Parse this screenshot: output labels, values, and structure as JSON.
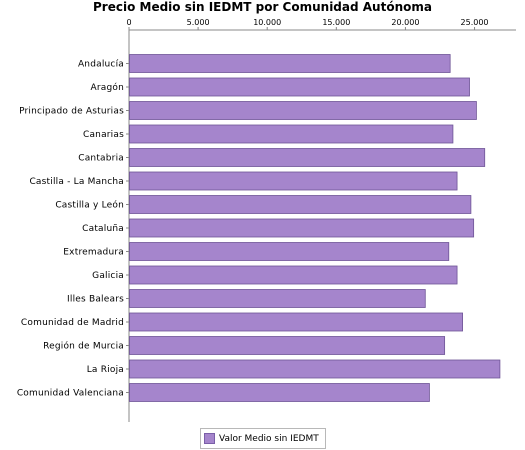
{
  "chart_data": {
    "type": "bar",
    "orientation": "horizontal",
    "title": "Precio Medio sin IEDMT por Comunidad Autónoma",
    "xlabel": "",
    "ylabel": "",
    "xlim": [
      0,
      28000
    ],
    "ticks": [
      0,
      5000,
      10000,
      15000,
      20000,
      25000
    ],
    "tick_labels": [
      "0",
      "5.000",
      "10.000",
      "15.000",
      "20.000",
      "25.000"
    ],
    "categories": [
      "Andalucía",
      "Aragón",
      "Principado de Asturias",
      "Canarias",
      "Cantabria",
      "Castilla - La Mancha",
      "Castilla y León",
      "Cataluña",
      "Extremadura",
      "Galicia",
      "Illes Balears",
      "Comunidad de Madrid",
      "Región de Murcia",
      "La Rioja",
      "Comunidad Valenciana"
    ],
    "series": [
      {
        "name": "Valor Medio sin IEDMT",
        "values": [
          23200,
          24600,
          25100,
          23400,
          25700,
          23700,
          24700,
          24900,
          23100,
          23700,
          21400,
          24100,
          22800,
          26800,
          21700
        ]
      }
    ],
    "grid": false,
    "legend_position": "bottom",
    "colors": {
      "bar_fill": "#a585cc",
      "bar_stroke": "#6e5496",
      "legend_swatch": "#a585cc"
    }
  }
}
